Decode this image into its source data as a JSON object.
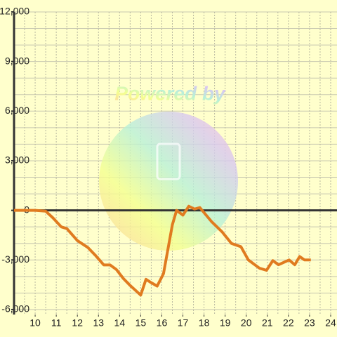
{
  "chart_data": {
    "type": "line",
    "watermark": "Powered by",
    "x": [
      9,
      10,
      10.5,
      10.84,
      11.24,
      11.5,
      12,
      12.5,
      12.84,
      13.25,
      13.55,
      13.85,
      14.18,
      14.5,
      15,
      15.25,
      15.5,
      15.78,
      16.08,
      16.5,
      16.7,
      17,
      17.28,
      17.55,
      17.8,
      18.35,
      18.85,
      19.3,
      19.75,
      20.1,
      20.63,
      20.96,
      21.26,
      21.53,
      22.03,
      22.3,
      22.53,
      22.76,
      23.06
    ],
    "series": [
      {
        "color": "#e07b20",
        "values": [
          0,
          0,
          -50,
          -450,
          -1000,
          -1100,
          -1830,
          -2250,
          -2700,
          -3300,
          -3300,
          -3580,
          -4125,
          -4540,
          -5125,
          -4170,
          -4375,
          -4580,
          -3830,
          -875,
          0,
          -290,
          250,
          80,
          170,
          -670,
          -1290,
          -2000,
          -2200,
          -3000,
          -3500,
          -3625,
          -3040,
          -3290,
          -3000,
          -3290,
          -2790,
          -3000,
          -3000
        ]
      }
    ],
    "xlim": [
      9,
      24.3
    ],
    "ylim": [
      -6300,
      12000
    ],
    "xticks": [
      10,
      11,
      12,
      13,
      14,
      15,
      16,
      17,
      18,
      19,
      20,
      21,
      22,
      23,
      24
    ],
    "yticks": [
      {
        "value": -6000,
        "label": "-6,000"
      },
      {
        "value": -3000,
        "label": "-3,000"
      },
      0,
      {
        "value": 3000,
        "label": "3,000"
      },
      {
        "value": 6000,
        "label": "6,000"
      },
      {
        "value": 9000,
        "label": "9,000"
      },
      {
        "value": 12000,
        "label": "12,000"
      }
    ],
    "ygrid": [
      -6000,
      -5000,
      -4000,
      -3000,
      -2000,
      -1000,
      0,
      1000,
      2000,
      3000,
      4000,
      5000,
      6000,
      7000,
      8000,
      9000,
      10000,
      11000,
      12000
    ],
    "xgrid": [
      9.5,
      10,
      10.5,
      11,
      11.5,
      12,
      12.5,
      13,
      13.5,
      14,
      14.5,
      15,
      15.5,
      16,
      16.5,
      17,
      17.5,
      18,
      18.5,
      19,
      19.5,
      20,
      20.5,
      21,
      21.5,
      22,
      22.5,
      23,
      23.5,
      24
    ],
    "grid": true
  }
}
